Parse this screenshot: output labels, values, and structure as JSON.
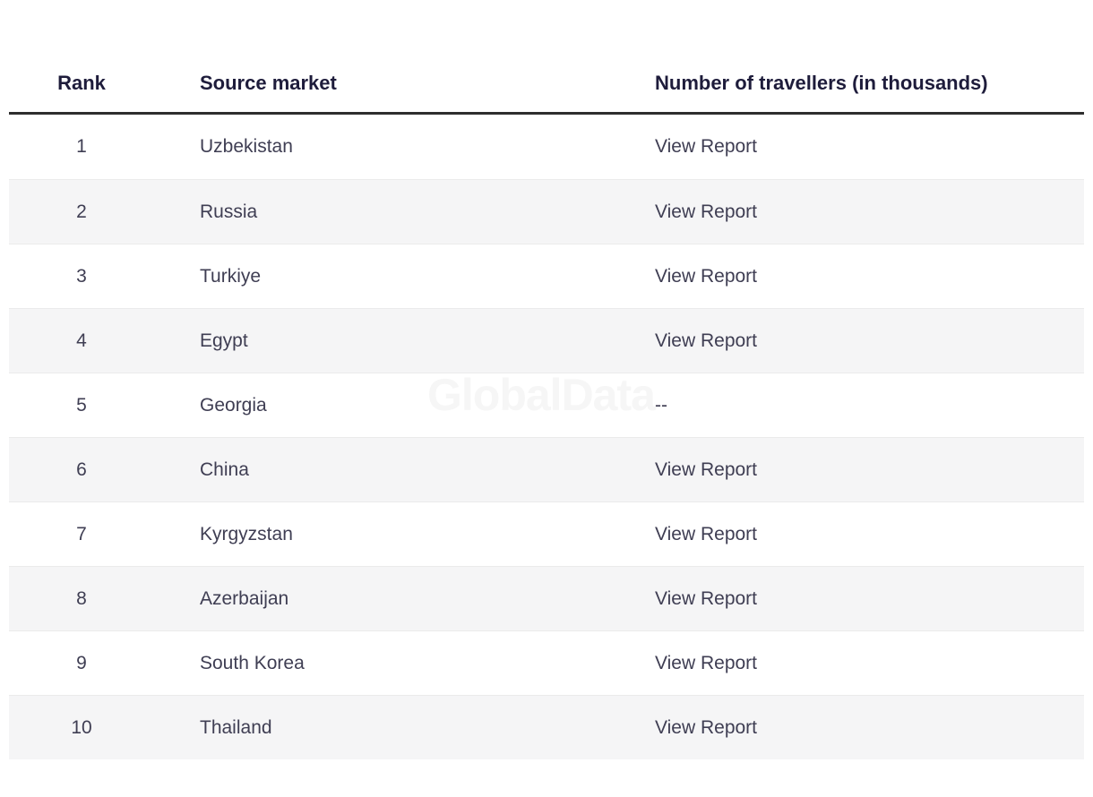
{
  "watermark": "GlobalData",
  "table": {
    "header": {
      "rank": "Rank",
      "source_market": "Source market",
      "travellers": "Number of travellers (in thousands)"
    },
    "rows": [
      {
        "rank": "1",
        "market": "Uzbekistan",
        "travellers": "View Report"
      },
      {
        "rank": "2",
        "market": "Russia",
        "travellers": "View Report"
      },
      {
        "rank": "3",
        "market": "Turkiye",
        "travellers": "View Report"
      },
      {
        "rank": "4",
        "market": "Egypt",
        "travellers": "View Report"
      },
      {
        "rank": "5",
        "market": "Georgia",
        "travellers": "--"
      },
      {
        "rank": "6",
        "market": "China",
        "travellers": "View Report"
      },
      {
        "rank": "7",
        "market": "Kyrgyzstan",
        "travellers": "View Report"
      },
      {
        "rank": "8",
        "market": "Azerbaijan",
        "travellers": "View Report"
      },
      {
        "rank": "9",
        "market": "South Korea",
        "travellers": "View Report"
      },
      {
        "rank": "10",
        "market": "Thailand",
        "travellers": "View Report"
      }
    ]
  },
  "colors": {
    "header_text": "#1e1c3b",
    "body_text": "#3f3e53",
    "row_stripe": "#f5f5f6",
    "header_divider": "#2e2e2e",
    "watermark": "#f6f6f6"
  }
}
